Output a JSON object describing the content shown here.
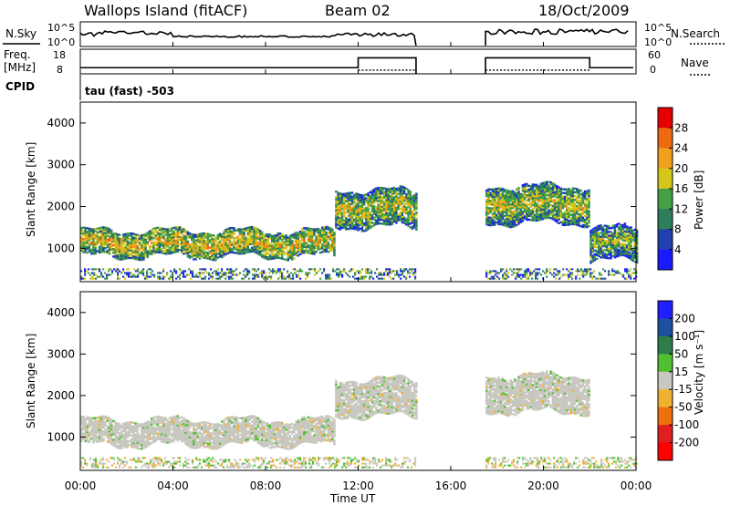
{
  "header": {
    "site": "Wallops Island (fitACF)",
    "beam": "Beam 02",
    "date": "18/Oct/2009"
  },
  "status_panel": {
    "nsky_label": "N.Sky",
    "nsky_ticks": [
      "10^5",
      "10^0"
    ],
    "nsearch_label": "N.Search",
    "nsearch_ticks": [
      "10^5",
      "10^0"
    ],
    "freq_label_1": "Freq.",
    "freq_label_2": "[MHz]",
    "freq_ticks": [
      "18",
      "8"
    ],
    "nave_label": "Nave",
    "nave_ticks": [
      "60",
      "0"
    ],
    "cpid_label": "CPID",
    "program": "tau (fast) -503"
  },
  "axes": {
    "ylabel": "Slant Range [km]",
    "yticks": [
      "4000",
      "3000",
      "2000",
      "1000"
    ],
    "xticks": [
      "00:00",
      "04:00",
      "08:00",
      "12:00",
      "16:00",
      "20:00",
      "00:00"
    ],
    "xlabel": "Time UT"
  },
  "power_scale": {
    "label": "Power [dB]",
    "ticks": [
      "28",
      "24",
      "20",
      "16",
      "12",
      "8",
      "4"
    ],
    "colors": [
      "#1a1aff",
      "#2040b0",
      "#2e7d5b",
      "#43a047",
      "#d4c61a",
      "#f0a01a",
      "#ee6a10",
      "#e60000"
    ]
  },
  "velocity_scale": {
    "label": "Velocity [m s⁻¹]",
    "ticks": [
      "200",
      "100",
      "50",
      "15",
      "-15",
      "-50",
      "-100",
      "-200"
    ],
    "colors": [
      "#2020ff",
      "#1e50a0",
      "#2e7d4a",
      "#50c030",
      "#c8c8c0",
      "#f0b030",
      "#f07010",
      "#e02020",
      "#ff0000"
    ]
  },
  "chart_data": {
    "type": "heatmap",
    "x_range": [
      "00:00",
      "24:00"
    ],
    "y_range_km": [
      200,
      4500
    ],
    "data_gap": [
      "14:30",
      "17:30"
    ],
    "power_bands": [
      {
        "start": "00:00",
        "end": "11:00",
        "range_km": [
          800,
          1400
        ],
        "power_db": 20
      },
      {
        "start": "11:00",
        "end": "14:30",
        "range_km": [
          1500,
          2400
        ],
        "power_db": 18
      },
      {
        "start": "17:30",
        "end": "22:00",
        "range_km": [
          1600,
          2500
        ],
        "power_db": 18
      },
      {
        "start": "22:00",
        "end": "24:00",
        "range_km": [
          700,
          1500
        ],
        "power_db": 16
      }
    ],
    "velocity_bands": [
      {
        "start": "00:00",
        "end": "11:00",
        "range_km": [
          800,
          1400
        ],
        "velocity_ms": 0
      },
      {
        "start": "11:00",
        "end": "14:30",
        "range_km": [
          1500,
          2400
        ],
        "velocity_ms": 0
      },
      {
        "start": "17:30",
        "end": "22:00",
        "range_km": [
          1600,
          2500
        ],
        "velocity_ms": 0
      }
    ],
    "frequency_mhz": [
      {
        "start": "00:00",
        "end": "12:00",
        "value": 10.5
      },
      {
        "start": "12:00",
        "end": "14:30",
        "value": 14.5
      },
      {
        "start": "17:30",
        "end": "22:00",
        "value": 14.5
      },
      {
        "start": "22:00",
        "end": "24:00",
        "value": 10.5
      }
    ],
    "nave": 9
  }
}
